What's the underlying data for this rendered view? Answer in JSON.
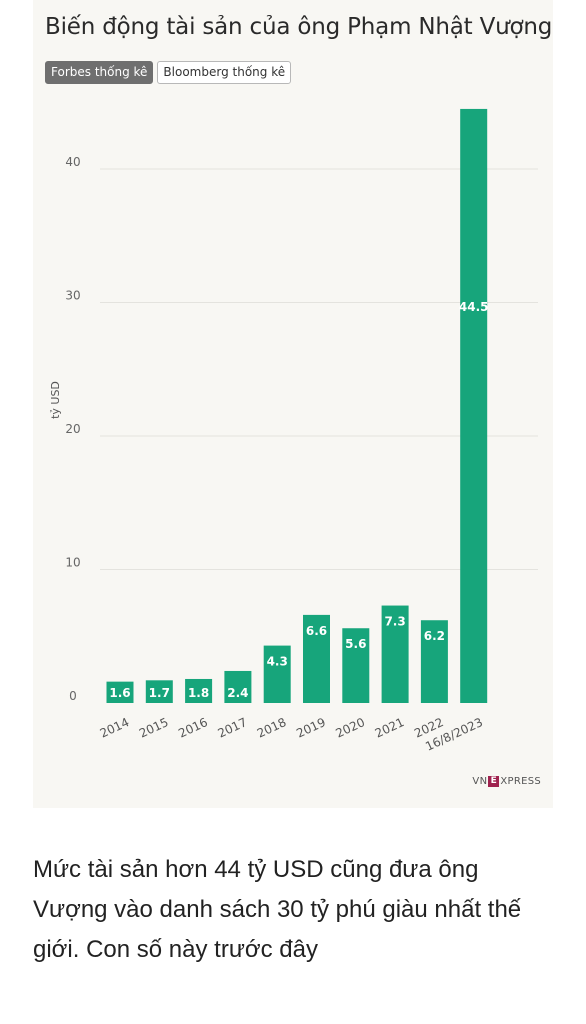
{
  "title": "Biến động tài sản của ông Phạm Nhật Vượng",
  "tabs": [
    {
      "label": "Forbes thống kê",
      "active": true
    },
    {
      "label": "Bloomberg thống kê",
      "active": false
    }
  ],
  "chart_data": {
    "type": "bar",
    "categories": [
      "2014",
      "2015",
      "2016",
      "2017",
      "2018",
      "2019",
      "2020",
      "2021",
      "2022",
      "16/8/2023"
    ],
    "values": [
      1.6,
      1.7,
      1.8,
      2.4,
      4.3,
      6.6,
      5.6,
      7.3,
      6.2,
      44.5
    ],
    "data_labels": [
      "1.6",
      "1.7",
      "1.8",
      "2.4",
      "4.3",
      "6.6",
      "5.6",
      "7.3",
      "6.2",
      "44.5"
    ],
    "ylabel": "tỷ USD",
    "yticks": [
      0,
      10,
      20,
      30,
      40
    ],
    "ylim": [
      0,
      45
    ],
    "bar_color": "#17a57b",
    "grid": true
  },
  "logo": {
    "prefix": "VN",
    "mark": "E",
    "suffix": "XPRESS"
  },
  "article": {
    "text": "Mức tài sản hơn 44 tỷ USD cũng đưa ông Vượng vào danh sách 30 tỷ phú giàu nhất thế giới. Con số này trước đây"
  }
}
